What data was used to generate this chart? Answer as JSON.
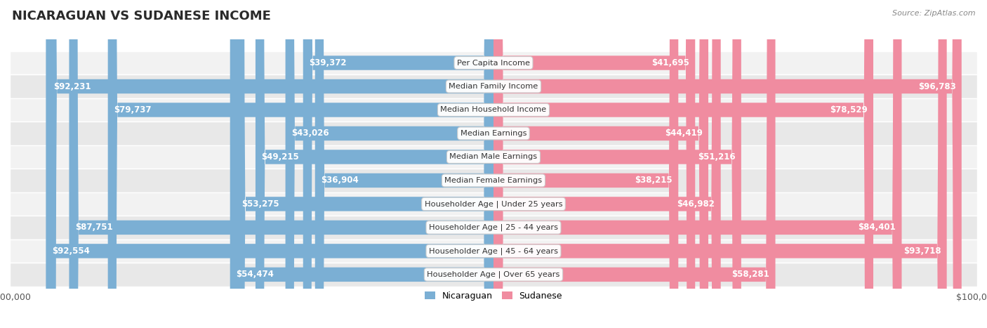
{
  "title": "NICARAGUAN VS SUDANESE INCOME",
  "source": "Source: ZipAtlas.com",
  "categories": [
    "Per Capita Income",
    "Median Family Income",
    "Median Household Income",
    "Median Earnings",
    "Median Male Earnings",
    "Median Female Earnings",
    "Householder Age | Under 25 years",
    "Householder Age | 25 - 44 years",
    "Householder Age | 45 - 64 years",
    "Householder Age | Over 65 years"
  ],
  "nicaraguan_values": [
    39372,
    92231,
    79737,
    43026,
    49215,
    36904,
    53275,
    87751,
    92554,
    54474
  ],
  "sudanese_values": [
    41695,
    96783,
    78529,
    44419,
    51216,
    38215,
    46982,
    84401,
    93718,
    58281
  ],
  "nicaraguan_labels": [
    "$39,372",
    "$92,231",
    "$79,737",
    "$43,026",
    "$49,215",
    "$36,904",
    "$53,275",
    "$87,751",
    "$92,554",
    "$54,474"
  ],
  "sudanese_labels": [
    "$41,695",
    "$96,783",
    "$78,529",
    "$44,419",
    "$51,216",
    "$38,215",
    "$46,982",
    "$84,401",
    "$93,718",
    "$58,281"
  ],
  "nicaraguan_color": "#7bafd4",
  "sudanese_color": "#f08ca0",
  "max_value": 100000,
  "background_color": "#ffffff",
  "title_fontsize": 13,
  "label_fontsize": 8.5,
  "category_fontsize": 8.2,
  "inside_label_threshold": 30000
}
